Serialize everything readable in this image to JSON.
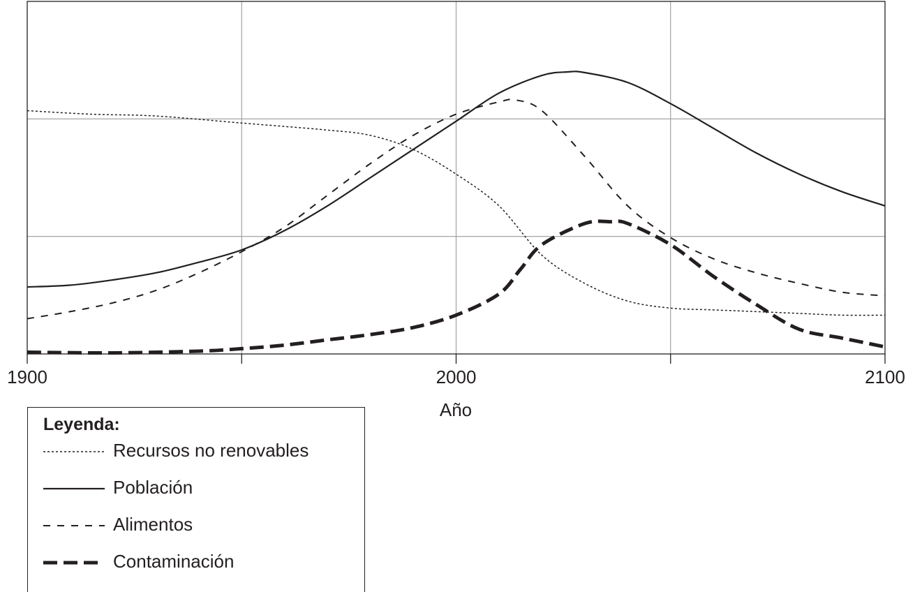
{
  "chart_data": {
    "type": "line",
    "xlabel": "Año",
    "xlim": [
      1900,
      2100
    ],
    "ylim": [
      0,
      1
    ],
    "x_ticks": [
      1900,
      1950,
      2000,
      2050,
      2100
    ],
    "x_tick_labels": [
      "1900",
      "2000",
      "2100"
    ],
    "grid": true,
    "series": [
      {
        "name": "Recursos no renovables",
        "style": "dotted",
        "x": [
          1900,
          1915,
          1930,
          1950,
          1970,
          1980,
          1990,
          2000,
          2010,
          2020,
          2030,
          2040,
          2050,
          2060,
          2070,
          2080,
          2090,
          2100
        ],
        "y": [
          0.69,
          0.68,
          0.675,
          0.655,
          0.635,
          0.62,
          0.58,
          0.51,
          0.42,
          0.28,
          0.2,
          0.15,
          0.13,
          0.125,
          0.12,
          0.115,
          0.11,
          0.11
        ]
      },
      {
        "name": "Población",
        "style": "solid",
        "x": [
          1900,
          1910,
          1920,
          1930,
          1940,
          1950,
          1960,
          1970,
          1980,
          1990,
          2000,
          2010,
          2020,
          2026,
          2030,
          2040,
          2050,
          2060,
          2070,
          2080,
          2090,
          2100
        ],
        "y": [
          0.19,
          0.195,
          0.21,
          0.23,
          0.26,
          0.295,
          0.35,
          0.42,
          0.5,
          0.58,
          0.66,
          0.74,
          0.79,
          0.8,
          0.798,
          0.77,
          0.71,
          0.64,
          0.57,
          0.51,
          0.46,
          0.42
        ]
      },
      {
        "name": "Alimentos",
        "style": "dashed",
        "x": [
          1900,
          1910,
          1920,
          1930,
          1940,
          1950,
          1960,
          1970,
          1980,
          1990,
          2000,
          2010,
          2014,
          2020,
          2030,
          2040,
          2050,
          2060,
          2070,
          2080,
          2090,
          2100
        ],
        "y": [
          0.1,
          0.12,
          0.145,
          0.18,
          0.23,
          0.29,
          0.36,
          0.45,
          0.54,
          0.62,
          0.68,
          0.715,
          0.72,
          0.69,
          0.56,
          0.42,
          0.33,
          0.27,
          0.23,
          0.2,
          0.175,
          0.165
        ]
      },
      {
        "name": "Contaminación",
        "style": "long-dashed-thick",
        "x": [
          1900,
          1920,
          1940,
          1950,
          1960,
          1970,
          1980,
          1990,
          2000,
          2010,
          2015,
          2020,
          2030,
          2036,
          2040,
          2050,
          2060,
          2070,
          2080,
          2090,
          2100
        ],
        "y": [
          0.005,
          0.003,
          0.008,
          0.015,
          0.025,
          0.04,
          0.055,
          0.075,
          0.11,
          0.17,
          0.24,
          0.31,
          0.37,
          0.375,
          0.37,
          0.31,
          0.22,
          0.14,
          0.07,
          0.045,
          0.02
        ]
      }
    ],
    "legend": {
      "title": "Leyenda:",
      "placement": "bottom-left"
    }
  }
}
